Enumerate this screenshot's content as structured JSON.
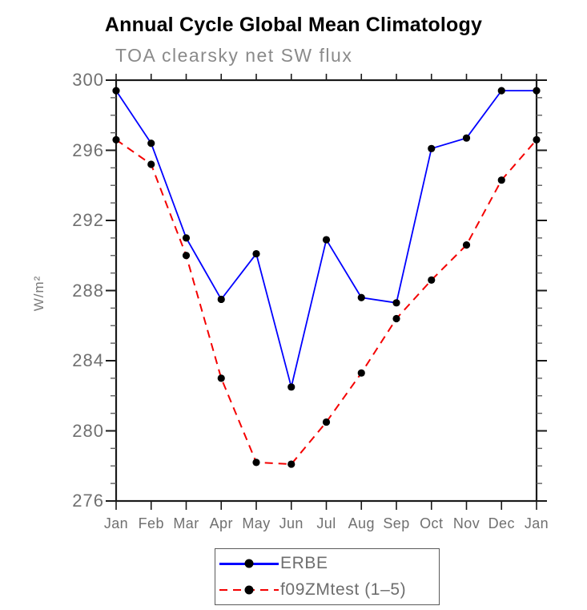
{
  "figure": {
    "title": "Annual Cycle Global Mean Climatology",
    "subtitle": "TOA clearsky net SW flux"
  },
  "chart_data": {
    "type": "line",
    "title": "Annual Cycle Global Mean Climatology",
    "subtitle": "TOA clearsky net SW flux",
    "xlabel": "",
    "ylabel": "W/m²",
    "categories": [
      "Jan",
      "Feb",
      "Mar",
      "Apr",
      "May",
      "Jun",
      "Jul",
      "Aug",
      "Sep",
      "Oct",
      "Nov",
      "Dec",
      "Jan"
    ],
    "series": [
      {
        "name": "ERBE",
        "color": "#0000ff",
        "style": "solid",
        "marker": "circle",
        "marker_color": "#000000",
        "values": [
          299.4,
          296.4,
          291.0,
          287.5,
          290.1,
          282.5,
          290.9,
          287.6,
          287.3,
          296.1,
          296.7,
          299.4,
          299.4
        ]
      },
      {
        "name": "f09ZMtest (1–5)",
        "color": "#f40000",
        "style": "dashed",
        "marker": "circle",
        "marker_color": "#000000",
        "values": [
          296.6,
          295.2,
          290.0,
          283.0,
          278.2,
          278.1,
          280.5,
          283.3,
          286.4,
          288.6,
          290.6,
          294.3,
          296.6
        ]
      }
    ],
    "ylim": [
      276,
      300
    ],
    "ytick_major": [
      276,
      280,
      284,
      288,
      292,
      296,
      300
    ],
    "ytick_minor_step": 1,
    "grid": false,
    "legend_position": "bottom-center",
    "axis_color": "#1a1a1a"
  }
}
